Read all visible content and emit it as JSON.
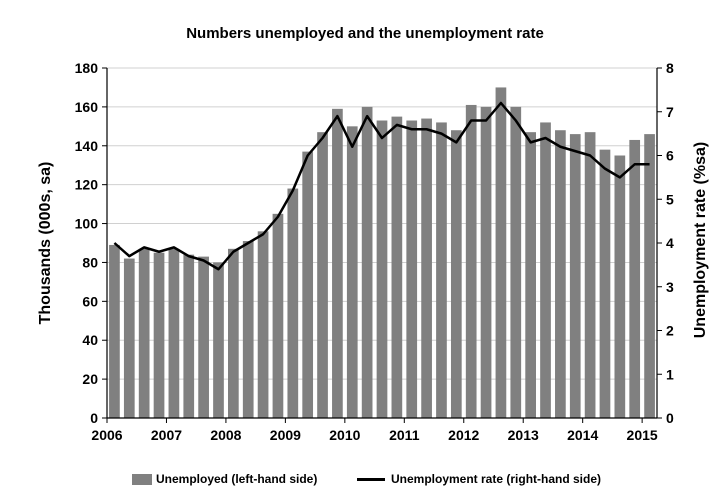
{
  "chart_data": {
    "type": "bar",
    "title": "Numbers unemployed and the unemployment rate",
    "ylabel": "Thousands (000s, sa)",
    "y2label": "Unemployment rate (%sa)",
    "ylim": [
      0,
      180
    ],
    "y2lim": [
      0,
      8
    ],
    "yticks": [
      "0",
      "20",
      "40",
      "60",
      "80",
      "100",
      "120",
      "140",
      "160",
      "180"
    ],
    "y2ticks": [
      "0",
      "1",
      "2",
      "3",
      "4",
      "5",
      "6",
      "7",
      "8"
    ],
    "xtick_labels": [
      "2006",
      "2007",
      "2008",
      "2009",
      "2010",
      "2011",
      "2012",
      "2013",
      "2014",
      "2015"
    ],
    "grid": "horizontal",
    "legend_position": "bottom",
    "colors": {
      "bars": "#808080",
      "line": "#000000",
      "grid": "#d0d0d0"
    },
    "series": [
      {
        "name": "Unemployed (left-hand side)",
        "type": "bar",
        "axis": "left",
        "values": [
          89,
          82,
          87,
          85,
          87,
          84,
          83,
          80,
          87,
          91,
          96,
          105,
          118,
          137,
          147,
          159,
          150,
          160,
          153,
          155,
          153,
          154,
          152,
          148,
          161,
          160,
          170,
          160,
          147,
          152,
          148,
          146,
          147,
          138,
          135,
          143,
          146
        ]
      },
      {
        "name": "Unemployment rate (right-hand side)",
        "type": "line",
        "axis": "right",
        "values": [
          4.0,
          3.7,
          3.9,
          3.8,
          3.9,
          3.7,
          3.6,
          3.4,
          3.8,
          4.0,
          4.2,
          4.6,
          5.2,
          6.0,
          6.4,
          6.9,
          6.2,
          6.9,
          6.4,
          6.7,
          6.6,
          6.6,
          6.5,
          6.3,
          6.8,
          6.8,
          7.2,
          6.8,
          6.3,
          6.4,
          6.2,
          6.1,
          6.0,
          5.7,
          5.5,
          5.8,
          5.8
        ]
      }
    ]
  }
}
